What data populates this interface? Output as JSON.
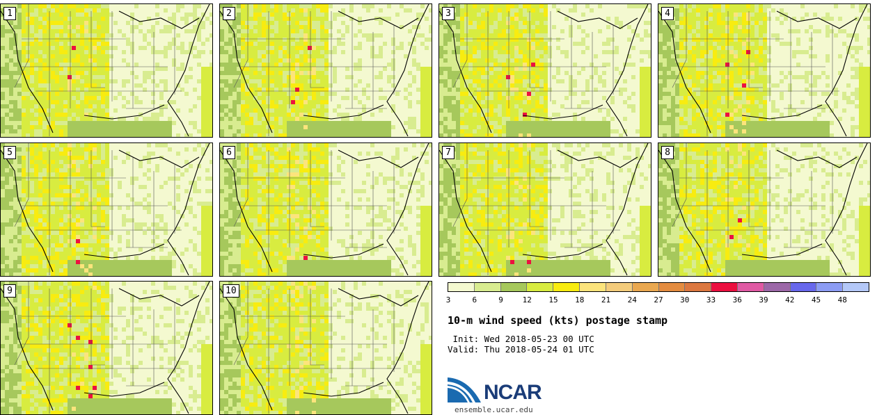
{
  "panels": [
    {
      "label": "1"
    },
    {
      "label": "2"
    },
    {
      "label": "3"
    },
    {
      "label": "4"
    },
    {
      "label": "5"
    },
    {
      "label": "6"
    },
    {
      "label": "7"
    },
    {
      "label": "8"
    },
    {
      "label": "9"
    },
    {
      "label": "10"
    }
  ],
  "colorbar": {
    "ticks": [
      "3",
      "6",
      "9",
      "12",
      "15",
      "18",
      "21",
      "24",
      "27",
      "30",
      "33",
      "36",
      "39",
      "42",
      "45",
      "48"
    ],
    "colors": [
      "#f4f9d0",
      "#d8ec90",
      "#a6c85c",
      "#d8ec40",
      "#f8ec10",
      "#fce47c",
      "#f4cc7c",
      "#eaa850",
      "#e48c40",
      "#dc7840",
      "#ec1040",
      "#e05aa4",
      "#9c68a8",
      "#6868ec",
      "#8c9cf4",
      "#b4c8f8"
    ]
  },
  "title": "10-m wind speed (kts) postage stamp",
  "init": " Init: Wed 2018-05-23 00 UTC",
  "valid": "Valid: Thu 2018-05-24 01 UTC",
  "logo": {
    "text": "NCAR",
    "url": "ensemble.ucar.edu",
    "colors": {
      "blue": "#1a6ab0",
      "dark": "#1a3c78"
    }
  }
}
